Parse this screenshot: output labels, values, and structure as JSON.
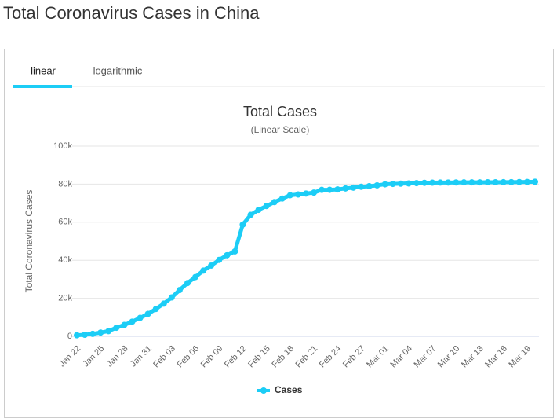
{
  "page": {
    "heading": "Total Coronavirus Cases in China",
    "tabs": [
      "linear",
      "logarithmic"
    ]
  },
  "chart_data": {
    "type": "line",
    "title": "Total Cases",
    "subtitle": "(Linear Scale)",
    "y_label": "Total Coronavirus Cases",
    "categories": [
      "Jan 22",
      null,
      null,
      "Jan 25",
      null,
      null,
      "Jan 28",
      null,
      null,
      "Jan 31",
      null,
      null,
      "Feb 03",
      null,
      null,
      "Feb 06",
      null,
      null,
      "Feb 09",
      null,
      null,
      "Feb 12",
      null,
      null,
      "Feb 15",
      null,
      null,
      "Feb 18",
      null,
      null,
      "Feb 21",
      null,
      null,
      "Feb 24",
      null,
      null,
      "Feb 27",
      null,
      null,
      "Mar 01",
      null,
      null,
      "Mar 04",
      null,
      null,
      "Mar 07",
      null,
      null,
      "Mar 10",
      null,
      null,
      "Mar 13",
      null,
      null,
      "Mar 16",
      null,
      null,
      "Mar 19",
      null
    ],
    "series": [
      {
        "name": "Cases",
        "color": "#1ccdf6",
        "values": [
          571,
          830,
          1287,
          1975,
          2744,
          4515,
          5974,
          7711,
          9692,
          11791,
          14380,
          17205,
          20438,
          24324,
          28018,
          31161,
          34546,
          37198,
          40171,
          42638,
          44653,
          58761,
          63851,
          66492,
          68500,
          70548,
          72436,
          74185,
          74576,
          75077,
          75550,
          77001,
          77022,
          77241,
          77754,
          78166,
          78600,
          78928,
          79356,
          79932,
          80136,
          80261,
          80386,
          80537,
          80690,
          80770,
          80823,
          80860,
          80887,
          80921,
          80932,
          80945,
          80977,
          81003,
          81033,
          81058,
          81102,
          81156,
          81250
        ]
      }
    ],
    "ylim": [
      0,
      100000
    ],
    "yticks": [
      0,
      {
        "value": 20000,
        "label": "20k"
      },
      {
        "value": 40000,
        "label": "40k"
      },
      {
        "value": 60000,
        "label": "60k"
      },
      {
        "value": 80000,
        "label": "80k"
      },
      {
        "value": 100000,
        "label": "100k"
      }
    ],
    "grid": true
  }
}
